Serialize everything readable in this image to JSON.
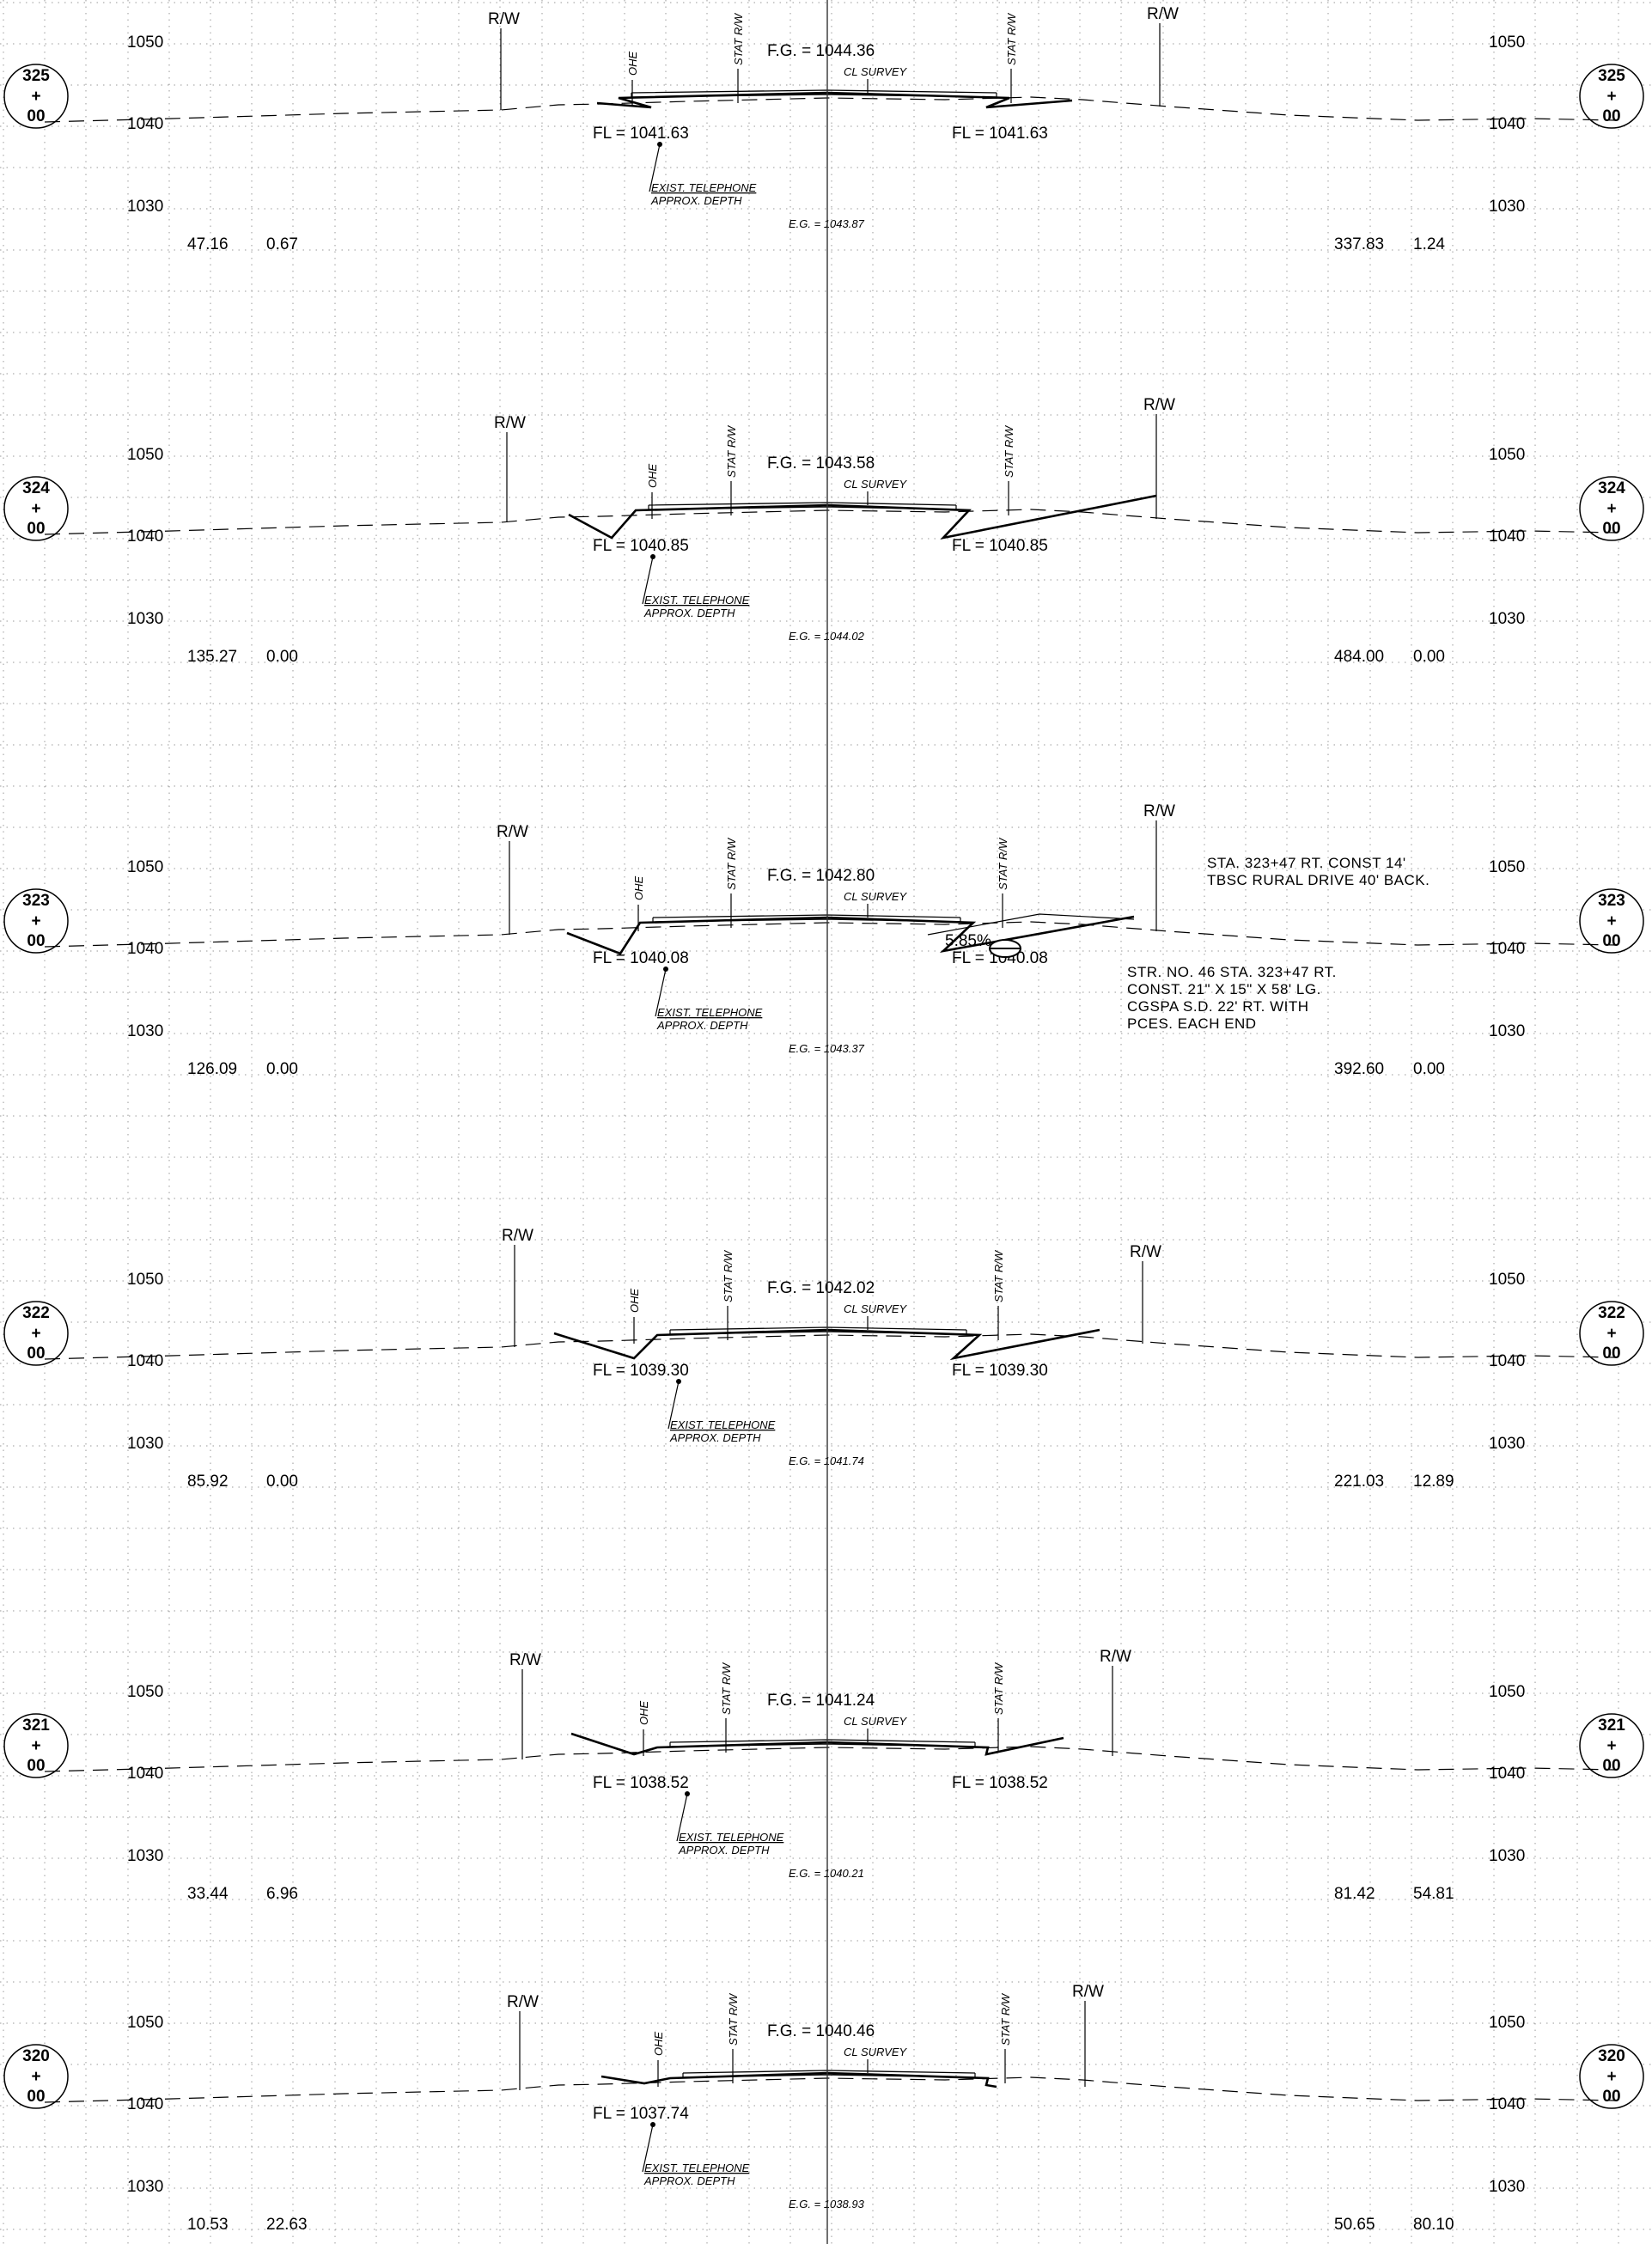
{
  "sheet": {
    "elevation_labels": {
      "upper": "1050",
      "middle": "1040",
      "lower": "1030"
    },
    "labels": {
      "rw": "R/W",
      "ohe": "OHE",
      "stat_rw": "STAT R/W",
      "cl_survey": "CL SURVEY",
      "exist_telephone": "EXIST. TELEPHONE",
      "approx_depth": "APPROX. DEPTH"
    }
  },
  "sections": [
    {
      "station": {
        "top": "325",
        "mid": "+",
        "bottom": "00"
      },
      "fg": "F.G. = 1044.36",
      "fl_left": "FL = 1041.63",
      "fl_right": "FL = 1041.63",
      "eg": "E.G. = 1043.87",
      "left_values": [
        "47.16",
        "0.67"
      ],
      "right_values": [
        "337.83",
        "1.24"
      ]
    },
    {
      "station": {
        "top": "324",
        "mid": "+",
        "bottom": "00"
      },
      "fg": "F.G. = 1043.58",
      "fl_left": "FL = 1040.85",
      "fl_right": "FL = 1040.85",
      "eg": "E.G. = 1044.02",
      "left_values": [
        "135.27",
        "0.00"
      ],
      "right_values": [
        "484.00",
        "0.00"
      ]
    },
    {
      "station": {
        "top": "323",
        "mid": "+",
        "bottom": "00"
      },
      "fg": "F.G. = 1042.80",
      "fl_left": "FL = 1040.08",
      "fl_right": "FL = 1040.08",
      "eg": "E.G. = 1043.37",
      "left_values": [
        "126.09",
        "0.00"
      ],
      "right_values": [
        "392.60",
        "0.00"
      ],
      "slope": "5.85%",
      "note_top": [
        "STA. 323+47 RT. CONST 14'",
        "TBSC RURAL DRIVE 40' BACK."
      ],
      "note_bottom": [
        "STR. NO. 46 STA. 323+47 RT.",
        "CONST. 21\" X 15\" X 58' LG.",
        "CGSPA S.D. 22' RT. WITH",
        "PCES. EACH END"
      ]
    },
    {
      "station": {
        "top": "322",
        "mid": "+",
        "bottom": "00"
      },
      "fg": "F.G. = 1042.02",
      "fl_left": "FL = 1039.30",
      "fl_right": "FL = 1039.30",
      "eg": "E.G. = 1041.74",
      "left_values": [
        "85.92",
        "0.00"
      ],
      "right_values": [
        "221.03",
        "12.89"
      ]
    },
    {
      "station": {
        "top": "321",
        "mid": "+",
        "bottom": "00"
      },
      "fg": "F.G. = 1041.24",
      "fl_left": "FL = 1038.52",
      "fl_right": "FL = 1038.52",
      "eg": "E.G. = 1040.21",
      "left_values": [
        "33.44",
        "6.96"
      ],
      "right_values": [
        "81.42",
        "54.81"
      ]
    },
    {
      "station": {
        "top": "320",
        "mid": "+",
        "bottom": "00"
      },
      "fg": "F.G. = 1040.46",
      "fl_left": "FL = 1037.74",
      "eg": "E.G. = 1038.93",
      "left_values": [
        "10.53",
        "22.63"
      ],
      "right_values": [
        "50.65",
        "80.10"
      ]
    }
  ]
}
